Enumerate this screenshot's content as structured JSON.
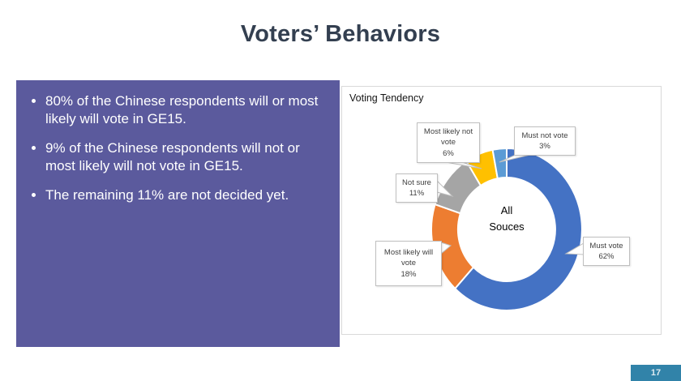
{
  "slide": {
    "title": "Voters’ Behaviors",
    "page_number": "17",
    "accent_box_color": "#5B5A9D",
    "page_tab_color": "#3183A9"
  },
  "summary_box": {
    "bullets": [
      "80% of the Chinese respondents will or most likely will vote in GE15.",
      "9% of the Chinese respondents will not or most likely will not vote in GE15.",
      "The remaining 11% are not decided yet."
    ]
  },
  "chart_data": {
    "type": "pie",
    "subtype": "donut",
    "title": "Voting Tendency",
    "center_label_lines": [
      "All",
      "Souces"
    ],
    "categories": [
      "Must vote",
      "Most likely will vote",
      "Not sure",
      "Most likely not vote",
      "Must not vote"
    ],
    "values": [
      62,
      18,
      11,
      6,
      3
    ],
    "colors": [
      "#4472C4",
      "#ED7D31",
      "#A5A5A5",
      "#FFC000",
      "#5B9BD5"
    ],
    "start_angle_deg": 0,
    "direction": "clockwise",
    "legend": "none",
    "callouts": [
      {
        "label": "Must vote",
        "pct": "62%"
      },
      {
        "label": "Most likely will vote",
        "pct": "18%"
      },
      {
        "label": "Not sure",
        "pct": "11%"
      },
      {
        "label": "Most likely not vote",
        "pct": "6%"
      },
      {
        "label": "Must not vote",
        "pct": "3%"
      }
    ]
  }
}
